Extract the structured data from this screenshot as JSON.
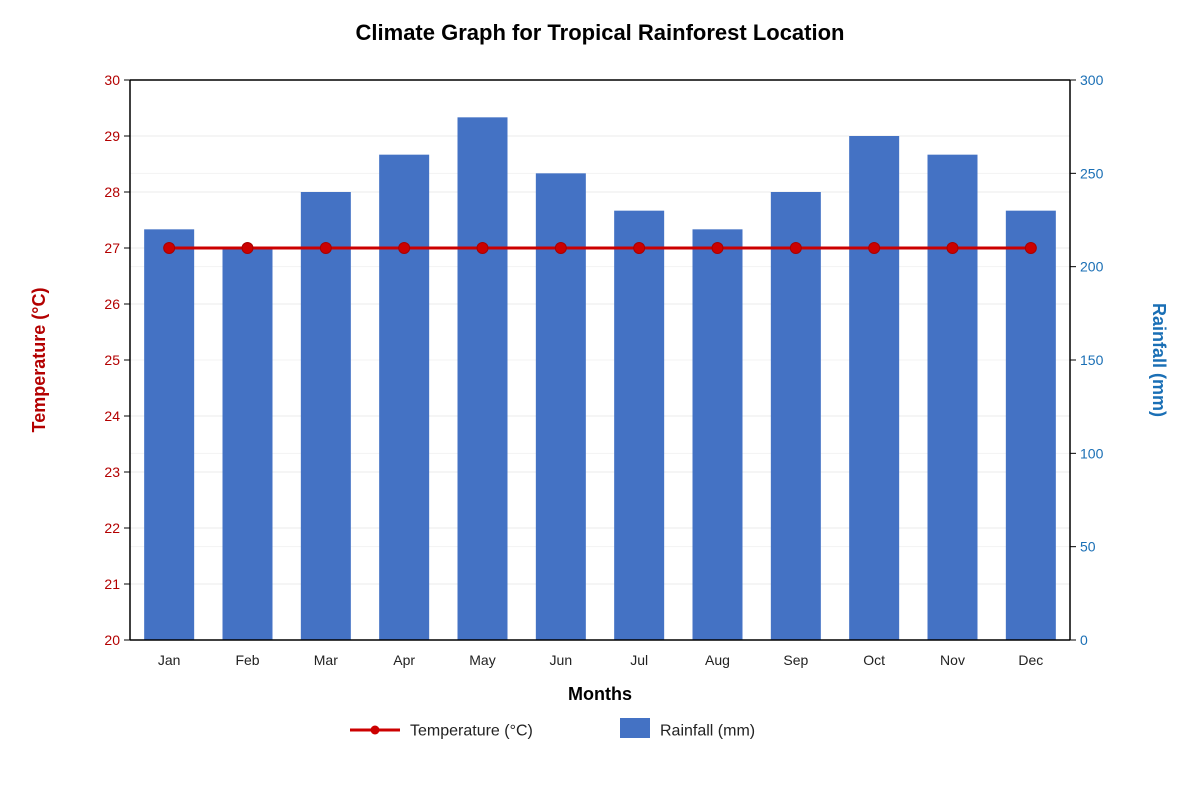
{
  "chart_data": {
    "type": "bar+line",
    "title": "Climate Graph for Tropical Rainforest Location",
    "xlabel": "Months",
    "categories": [
      "Jan",
      "Feb",
      "Mar",
      "Apr",
      "May",
      "Jun",
      "Jul",
      "Aug",
      "Sep",
      "Oct",
      "Nov",
      "Dec"
    ],
    "y_left": {
      "label": "Temperature (°C)",
      "range": [
        20,
        30
      ],
      "ticks": [
        "20",
        "21",
        "22",
        "23",
        "24",
        "25",
        "26",
        "27",
        "28",
        "29",
        "30"
      ],
      "color": "#b30000"
    },
    "y_right": {
      "label": "Rainfall (mm)",
      "range": [
        0,
        300
      ],
      "ticks": [
        "0",
        "50",
        "100",
        "150",
        "200",
        "250",
        "300"
      ],
      "color": "#1a6fb5"
    },
    "series": [
      {
        "name": "Rainfall (mm)",
        "type": "bar",
        "axis": "right",
        "color": "#4472c4",
        "values": [
          220,
          210,
          240,
          260,
          280,
          250,
          230,
          220,
          240,
          270,
          260,
          230
        ]
      },
      {
        "name": "Temperature (°C)",
        "type": "line",
        "axis": "left",
        "color": "#cc0000",
        "values": [
          27,
          27,
          27,
          27,
          27,
          27,
          27,
          27,
          27,
          27,
          27,
          27
        ]
      }
    ],
    "grid": true,
    "legend_position": "bottom-center"
  }
}
